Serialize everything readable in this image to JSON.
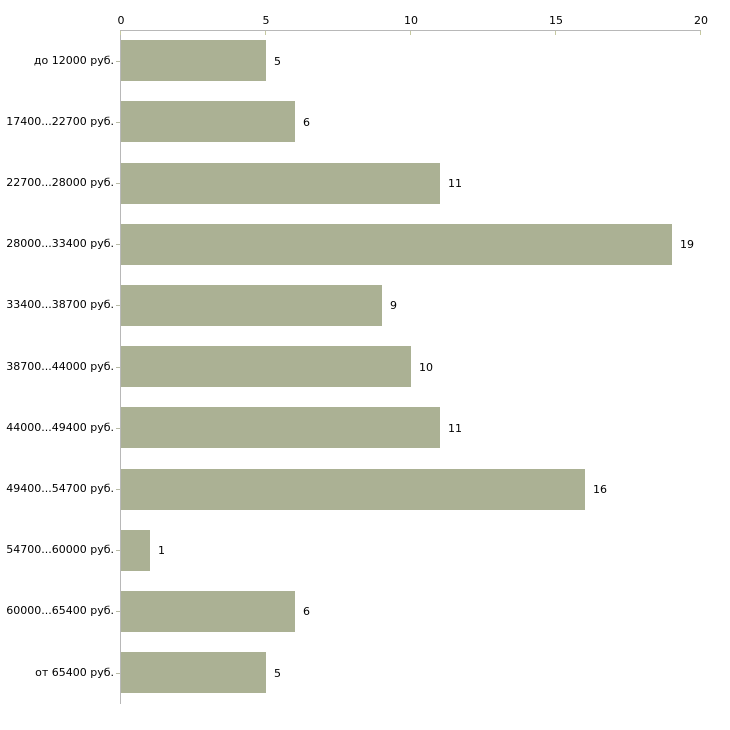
{
  "chart_data": {
    "type": "bar",
    "orientation": "horizontal",
    "title": "",
    "xlabel": "",
    "ylabel": "",
    "categories": [
      "до 12000 руб.",
      "17400...22700 руб.",
      "22700...28000 руб.",
      "28000...33400 руб.",
      "33400...38700 руб.",
      "38700...44000 руб.",
      "44000...49400 руб.",
      "49400...54700 руб.",
      "54700...60000 руб.",
      "60000...65400 руб.",
      "от 65400 руб."
    ],
    "values": [
      5,
      6,
      11,
      19,
      9,
      10,
      11,
      16,
      1,
      6,
      5
    ],
    "x_ticks": [
      "0",
      "5",
      "10",
      "15",
      "20"
    ],
    "x_tick_values": [
      0,
      5,
      10,
      15,
      20
    ],
    "xlim": [
      0,
      20
    ],
    "grid": false,
    "legend_position": "none",
    "value_labels_shown": true,
    "axis_position": "top",
    "colors": {
      "bar_fill": "#abb194",
      "axis_line": "#b8b8b8",
      "axis_tick": "#c6c9a0",
      "category_tick": "#b8bba6",
      "text": "#000000",
      "background": "#ffffff"
    }
  }
}
